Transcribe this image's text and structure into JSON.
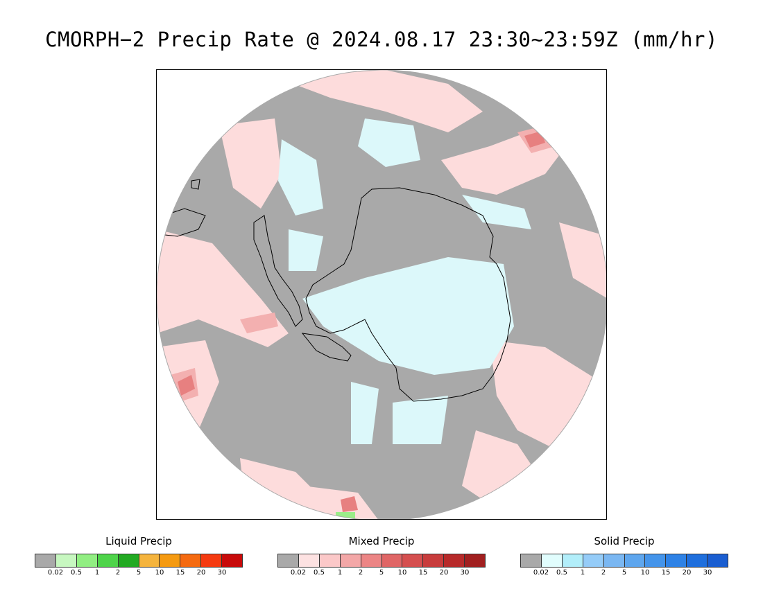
{
  "title": "CMORPH−2 Precip Rate @ 2024.08.17 23:30~23:59Z (mm/hr)",
  "colors": {
    "background_no_precip": "#a9a9a9",
    "mixed_light": "#fddcdc",
    "mixed_medium": "#f3a5a5",
    "mixed_heavy": "#e07070",
    "solid_light": "#dcf8fa",
    "liquid_light": "#9bed89",
    "coastline": "#000000"
  },
  "legends": [
    {
      "title": "Liquid Precip",
      "colors": [
        "#a9a9a9",
        "#c7f7c0",
        "#91ee82",
        "#4ed44a",
        "#22aa22",
        "#f5b43d",
        "#f59a10",
        "#f56a10",
        "#f53a10",
        "#c80a0a"
      ],
      "ticks": [
        "0.02",
        "0.5",
        "1",
        "2",
        "5",
        "10",
        "15",
        "20",
        "30"
      ]
    },
    {
      "title": "Mixed Precip",
      "colors": [
        "#a9a9a9",
        "#fde2e2",
        "#fbc8c8",
        "#f3a7a7",
        "#ec8585",
        "#e06666",
        "#d54f4f",
        "#c83c3c",
        "#b72a2a",
        "#a11f1f"
      ],
      "ticks": [
        "0.02",
        "0.5",
        "1",
        "2",
        "5",
        "10",
        "15",
        "20",
        "30"
      ]
    },
    {
      "title": "Solid Precip",
      "colors": [
        "#a9a9a9",
        "#e1fdfd",
        "#b2eefa",
        "#95ccf8",
        "#7ab7f2",
        "#5ea6ee",
        "#4494ea",
        "#2e82e6",
        "#1f6fdd",
        "#1a5ed1"
      ],
      "ticks": [
        "0.02",
        "0.5",
        "1",
        "2",
        "5",
        "10",
        "15",
        "20",
        "30"
      ]
    }
  ]
}
